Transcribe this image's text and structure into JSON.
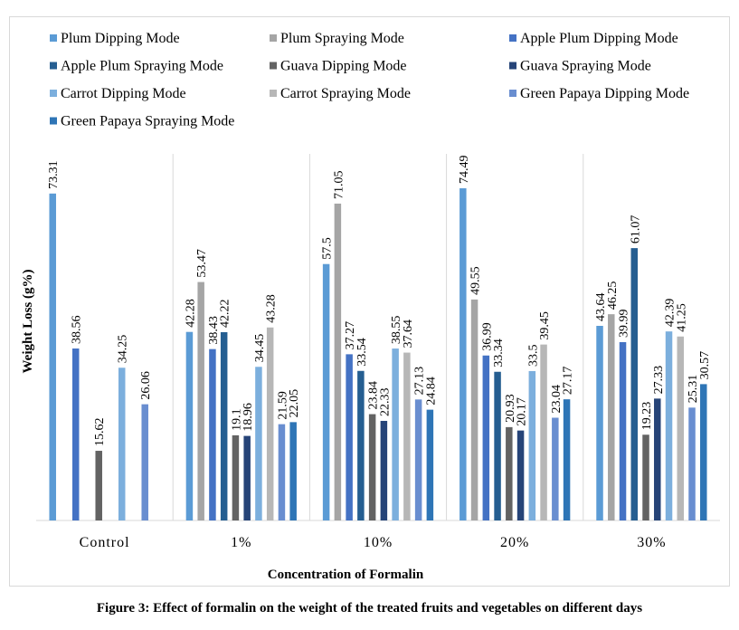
{
  "chart_data": {
    "type": "bar",
    "title": "",
    "xlabel": "Concentration of Formalin",
    "ylabel": "Weight Loss (g%)",
    "ylim": [
      0,
      80
    ],
    "grid": false,
    "legend_position": "top",
    "categories": [
      "Control",
      "1%",
      "10%",
      "20%",
      "30%"
    ],
    "series": [
      {
        "name": "Plum Dipping Mode",
        "color": "#5b9bd5",
        "values": [
          73.31,
          42.28,
          57.5,
          74.49,
          43.64
        ]
      },
      {
        "name": "Plum Spraying Mode",
        "color": "#a5a5a5",
        "values": [
          null,
          53.47,
          71.05,
          49.55,
          46.25
        ]
      },
      {
        "name": "Apple Plum Dipping Mode",
        "color": "#4472c4",
        "values": [
          38.56,
          38.43,
          37.27,
          36.99,
          39.99
        ]
      },
      {
        "name": "Apple Plum Spraying Mode",
        "color": "#255e91",
        "values": [
          null,
          42.22,
          33.54,
          33.34,
          61.07
        ]
      },
      {
        "name": "Guava Dipping Mode",
        "color": "#636363",
        "values": [
          15.62,
          19.1,
          23.84,
          20.93,
          19.23
        ]
      },
      {
        "name": "Guava Spraying Mode",
        "color": "#264478",
        "values": [
          null,
          18.96,
          22.33,
          20.17,
          27.33
        ]
      },
      {
        "name": "Carrot Dipping Mode",
        "color": "#7cafdd",
        "values": [
          34.25,
          34.45,
          38.55,
          33.5,
          42.39
        ]
      },
      {
        "name": "Carrot Spraying Mode",
        "color": "#b7b7b7",
        "values": [
          null,
          43.28,
          37.64,
          39.45,
          41.25
        ]
      },
      {
        "name": "Green Papaya Dipping Mode",
        "color": "#698ed0",
        "values": [
          26.06,
          21.59,
          27.13,
          23.04,
          25.31
        ]
      },
      {
        "name": "Green Papaya Spraying Mode",
        "color": "#2e75b6",
        "values": [
          null,
          22.05,
          24.84,
          27.17,
          30.57
        ]
      }
    ]
  },
  "caption": "Figure 3: Effect of formalin on the weight of the treated fruits and vegetables on different days"
}
